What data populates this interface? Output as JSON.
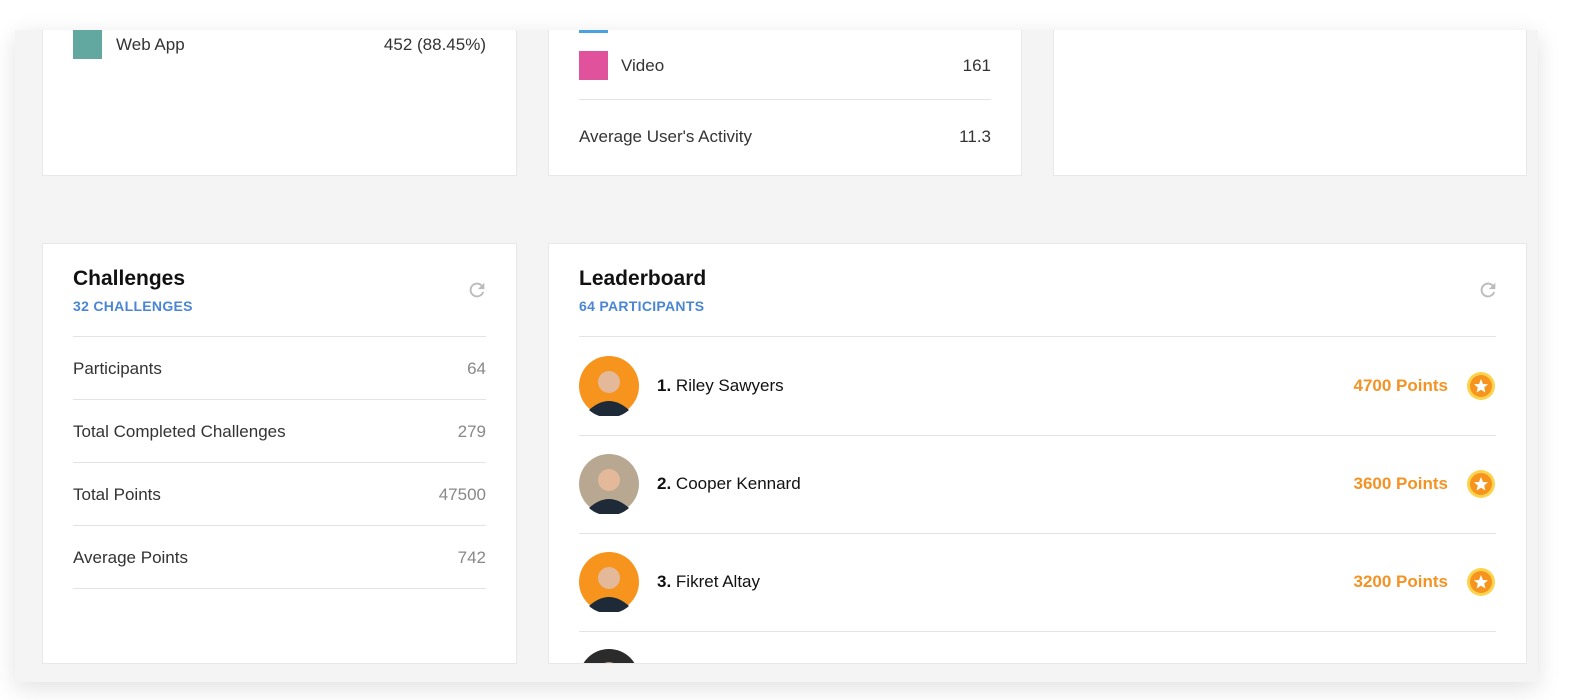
{
  "device_card": {
    "legend": [
      {
        "label": "Web App",
        "value": "452 (88.45%)"
      }
    ]
  },
  "activity_card": {
    "legend": [
      {
        "label": "Video",
        "value": 161
      }
    ],
    "average_label": "Average User's Activity",
    "average_value": 11.3
  },
  "challenges": {
    "title": "Challenges",
    "subtitle": "32 CHALLENGES",
    "rows": [
      {
        "label": "Participants",
        "value": 64
      },
      {
        "label": "Total Completed Challenges",
        "value": 279
      },
      {
        "label": "Total Points",
        "value": 47500
      },
      {
        "label": "Average Points",
        "value": 742
      }
    ]
  },
  "leaderboard": {
    "title": "Leaderboard",
    "subtitle": "64 PARTICIPANTS",
    "entries": [
      {
        "rank": "1.",
        "name": "Riley Sawyers",
        "points": "4700 Points"
      },
      {
        "rank": "2.",
        "name": "Cooper Kennard",
        "points": "3600 Points"
      },
      {
        "rank": "3.",
        "name": "Fikret Altay",
        "points": "3200 Points"
      }
    ]
  }
}
